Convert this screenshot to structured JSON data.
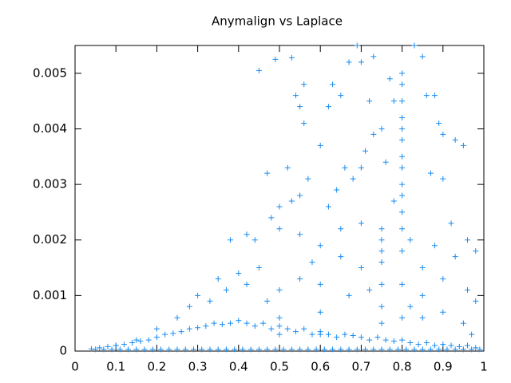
{
  "chart_data": {
    "type": "scatter",
    "title": "Anymalign vs Laplace",
    "color": "#1a8cf0",
    "marker": "plus",
    "xlim": [
      0,
      1
    ],
    "ylim": [
      0,
      0.0055
    ],
    "xticks": [
      0,
      0.1,
      0.2,
      0.3,
      0.4,
      0.5,
      0.6,
      0.7,
      0.8,
      0.9,
      1
    ],
    "yticks": [
      0,
      0.001,
      0.002,
      0.003,
      0.004,
      0.005
    ],
    "x": [
      0.45,
      0.49,
      0.53,
      0.56,
      0.55,
      0.56,
      0.54,
      0.47,
      0.52,
      0.6,
      0.62,
      0.63,
      0.65,
      0.67,
      0.69,
      0.7,
      0.73,
      0.77,
      0.78,
      0.8,
      0.8,
      0.8,
      0.8,
      0.8,
      0.8,
      0.83,
      0.85,
      0.86,
      0.88,
      0.89,
      0.9,
      0.93,
      0.95,
      0.87,
      0.9,
      0.75,
      0.73,
      0.72,
      0.76,
      0.7,
      0.71,
      0.68,
      0.66,
      0.64,
      0.62,
      0.57,
      0.55,
      0.53,
      0.5,
      0.48,
      0.42,
      0.38,
      0.44,
      0.5,
      0.55,
      0.58,
      0.6,
      0.65,
      0.7,
      0.75,
      0.75,
      0.75,
      0.75,
      0.75,
      0.75,
      0.75,
      0.78,
      0.82,
      0.85,
      0.88,
      0.92,
      0.96,
      0.98,
      0.96,
      0.98,
      0.95,
      0.97,
      0.9,
      0.85,
      0.82,
      0.7,
      0.67,
      0.6,
      0.6,
      0.6,
      0.5,
      0.5,
      0.5,
      0.45,
      0.4,
      0.35,
      0.3,
      0.28,
      0.25,
      0.2,
      0.15,
      0.1,
      0.8,
      0.8,
      0.8,
      0.8,
      0.8,
      0.8,
      0.8,
      0.8,
      0.8,
      0.33,
      0.37,
      0.42,
      0.47,
      0.55,
      0.65,
      0.72,
      0.85,
      0.9,
      0.93,
      0.04,
      0.06,
      0.08,
      0.1,
      0.12,
      0.14,
      0.16,
      0.18,
      0.2,
      0.22,
      0.24,
      0.26,
      0.28,
      0.3,
      0.32,
      0.34,
      0.36,
      0.38,
      0.4,
      0.42,
      0.44,
      0.46,
      0.48,
      0.5,
      0.52,
      0.54,
      0.56,
      0.58,
      0.6,
      0.62,
      0.64,
      0.66,
      0.68,
      0.7,
      0.72,
      0.74,
      0.76,
      0.78,
      0.8,
      0.82,
      0.84,
      0.86,
      0.88,
      0.9,
      0.92,
      0.94,
      0.96,
      0.98,
      0.05,
      0.07,
      0.09,
      0.11,
      0.13,
      0.15,
      0.17,
      0.19,
      0.21,
      0.23,
      0.25,
      0.27,
      0.29,
      0.31,
      0.33,
      0.35,
      0.37,
      0.39,
      0.41,
      0.43,
      0.45,
      0.47,
      0.49,
      0.51,
      0.53,
      0.55,
      0.57,
      0.59,
      0.61,
      0.63,
      0.65,
      0.67,
      0.69,
      0.71,
      0.73,
      0.75,
      0.77,
      0.79,
      0.81,
      0.83,
      0.85,
      0.87,
      0.89,
      0.91,
      0.93,
      0.95,
      0.97,
      0.99
    ],
    "values": [
      0.00505,
      0.00525,
      0.00528,
      0.0048,
      0.0044,
      0.0041,
      0.0046,
      0.0032,
      0.0033,
      0.0037,
      0.0044,
      0.0048,
      0.0046,
      0.0052,
      0.0055,
      0.0052,
      0.0053,
      0.0049,
      0.0045,
      0.005,
      0.0045,
      0.004,
      0.0035,
      0.003,
      0.0025,
      0.0055,
      0.0053,
      0.0046,
      0.0046,
      0.0041,
      0.0039,
      0.0038,
      0.0037,
      0.0032,
      0.0031,
      0.004,
      0.0039,
      0.0045,
      0.0034,
      0.0033,
      0.0036,
      0.0031,
      0.0033,
      0.0029,
      0.0026,
      0.0031,
      0.0028,
      0.0027,
      0.0026,
      0.0024,
      0.0021,
      0.002,
      0.002,
      0.0022,
      0.0021,
      0.0016,
      0.0019,
      0.0022,
      0.0023,
      0.0022,
      0.002,
      0.0018,
      0.0016,
      0.0012,
      0.0008,
      0.0005,
      0.0027,
      0.002,
      0.0015,
      0.0019,
      0.0023,
      0.002,
      0.0018,
      0.0011,
      0.0009,
      0.0005,
      0.0003,
      0.0007,
      0.001,
      0.0008,
      0.0015,
      0.001,
      0.0012,
      0.0007,
      0.0003,
      0.0011,
      0.0006,
      0.0003,
      0.0015,
      0.0014,
      0.0013,
      0.001,
      0.0008,
      0.0006,
      0.0004,
      0.0002,
      0.0001,
      0.0048,
      0.0042,
      0.0038,
      0.0033,
      0.0028,
      0.0022,
      0.0018,
      0.0012,
      0.0006,
      0.0009,
      0.0011,
      0.0012,
      0.0009,
      0.0013,
      0.0017,
      0.0011,
      0.0006,
      0.0013,
      0.0017,
      4e-05,
      6e-05,
      8e-05,
      0.0001,
      0.00012,
      0.00015,
      0.00018,
      0.0002,
      0.00025,
      0.0003,
      0.00032,
      0.00035,
      0.0004,
      0.00042,
      0.00045,
      0.0005,
      0.00048,
      0.0005,
      0.00055,
      0.0005,
      0.00045,
      0.0005,
      0.0004,
      0.00045,
      0.0004,
      0.00035,
      0.0004,
      0.0003,
      0.00035,
      0.0003,
      0.00025,
      0.0003,
      0.00028,
      0.00025,
      0.0002,
      0.00025,
      0.0002,
      0.00018,
      0.0002,
      0.00015,
      0.00012,
      0.00015,
      0.0001,
      0.00012,
      0.0001,
      8e-05,
      0.0001,
      6e-05,
      3e-05,
      3e-05,
      3e-05,
      3e-05,
      3e-05,
      3e-05,
      3e-05,
      3e-05,
      3e-05,
      3e-05,
      3e-05,
      3e-05,
      3e-05,
      3e-05,
      3e-05,
      3e-05,
      3e-05,
      3e-05,
      3e-05,
      3e-05,
      3e-05,
      3e-05,
      3e-05,
      3e-05,
      3e-05,
      3e-05,
      3e-05,
      3e-05,
      3e-05,
      3e-05,
      3e-05,
      3e-05,
      3e-05,
      3e-05,
      3e-05,
      3e-05,
      3e-05,
      3e-05,
      3e-05,
      3e-05,
      3e-05,
      3e-05,
      3e-05,
      3e-05,
      3e-05,
      3e-05,
      3e-05,
      3e-05
    ]
  }
}
